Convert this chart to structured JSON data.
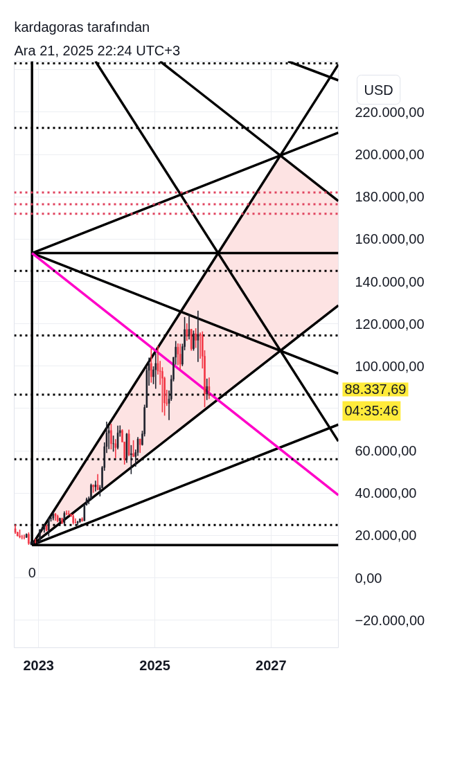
{
  "chart_data": {
    "type": "candlestick",
    "title": "kardagoras tarafından",
    "subtitle": "Ara 21, 2025 22:24 UTC+3",
    "x": [
      "2022-08-08",
      "2022-08-22",
      "2022-09-05",
      "2022-09-19",
      "2022-10-03",
      "2022-10-17",
      "2022-10-31",
      "2022-11-14",
      "2022-11-28",
      "2022-12-12",
      "2022-12-26",
      "2023-01-09",
      "2023-01-23",
      "2023-02-06",
      "2023-02-20",
      "2023-03-06",
      "2023-03-20",
      "2023-04-03",
      "2023-04-17",
      "2023-05-01",
      "2023-05-15",
      "2023-05-29",
      "2023-06-12",
      "2023-06-26",
      "2023-07-10",
      "2023-07-24",
      "2023-08-07",
      "2023-08-21",
      "2023-09-04",
      "2023-09-18",
      "2023-10-02",
      "2023-10-16",
      "2023-10-30",
      "2023-11-13",
      "2023-11-27",
      "2023-12-11",
      "2023-12-25",
      "2024-01-08",
      "2024-01-22",
      "2024-02-05",
      "2024-02-19",
      "2024-03-04",
      "2024-03-18",
      "2024-04-01",
      "2024-04-15",
      "2024-04-29",
      "2024-05-13",
      "2024-05-27",
      "2024-06-10",
      "2024-06-24",
      "2024-07-08",
      "2024-07-22",
      "2024-08-05",
      "2024-08-19",
      "2024-09-02",
      "2024-09-16",
      "2024-09-30",
      "2024-10-14",
      "2024-10-28",
      "2024-11-11",
      "2024-11-25",
      "2024-12-09",
      "2024-12-23",
      "2025-01-06",
      "2025-01-20",
      "2025-02-03",
      "2025-02-17",
      "2025-03-03",
      "2025-03-17",
      "2025-03-31",
      "2025-04-14",
      "2025-04-28",
      "2025-05-12",
      "2025-05-26",
      "2025-06-09",
      "2025-06-23",
      "2025-07-07",
      "2025-07-21",
      "2025-08-04",
      "2025-08-18",
      "2025-09-01",
      "2025-09-15",
      "2025-09-29",
      "2025-10-13",
      "2025-10-27",
      "2025-11-10",
      "2025-11-24",
      "2025-12-08"
    ],
    "ohlc": [
      [
        23200,
        25200,
        20800,
        21500
      ],
      [
        21500,
        21800,
        19600,
        19800
      ],
      [
        19800,
        22800,
        18700,
        19400
      ],
      [
        19400,
        20300,
        18200,
        19300
      ],
      [
        19300,
        20500,
        18200,
        19100
      ],
      [
        19100,
        21000,
        18900,
        20600
      ],
      [
        20600,
        21500,
        15600,
        16300
      ],
      [
        16300,
        17200,
        15500,
        16500
      ],
      [
        16500,
        17400,
        16000,
        17100
      ],
      [
        17100,
        18400,
        16300,
        16800
      ],
      [
        16800,
        17100,
        16300,
        17100
      ],
      [
        17100,
        23000,
        17100,
        22700
      ],
      [
        22700,
        24200,
        22300,
        23000
      ],
      [
        23000,
        25200,
        21400,
        24600
      ],
      [
        24600,
        25100,
        22000,
        22400
      ],
      [
        22400,
        28500,
        19600,
        28000
      ],
      [
        28000,
        29200,
        26600,
        28200
      ],
      [
        28200,
        31000,
        27200,
        30300
      ],
      [
        30300,
        30500,
        27000,
        29200
      ],
      [
        29200,
        29800,
        26300,
        26900
      ],
      [
        26900,
        28400,
        26100,
        28100
      ],
      [
        28100,
        28400,
        25400,
        25900
      ],
      [
        25900,
        31400,
        24800,
        30500
      ],
      [
        30500,
        31800,
        29600,
        30300
      ],
      [
        30300,
        31800,
        29500,
        30100
      ],
      [
        30100,
        30100,
        28800,
        29100
      ],
      [
        29100,
        30200,
        25200,
        26100
      ],
      [
        26100,
        28100,
        25800,
        25900
      ],
      [
        25900,
        26900,
        24900,
        26500
      ],
      [
        26500,
        28000,
        26000,
        27900
      ],
      [
        27900,
        28600,
        26500,
        26900
      ],
      [
        26900,
        35000,
        26900,
        34500
      ],
      [
        34500,
        37900,
        34100,
        37100
      ],
      [
        37100,
        38400,
        34800,
        37400
      ],
      [
        37400,
        44500,
        36700,
        43800
      ],
      [
        43800,
        44100,
        40200,
        43000
      ],
      [
        43000,
        45900,
        40800,
        43900
      ],
      [
        43900,
        49000,
        41500,
        41600
      ],
      [
        41600,
        43800,
        38500,
        42600
      ],
      [
        42600,
        52800,
        42300,
        52100
      ],
      [
        52100,
        64000,
        50600,
        62000
      ],
      [
        62000,
        73800,
        59000,
        68400
      ],
      [
        68400,
        71700,
        60800,
        69600
      ],
      [
        69600,
        72800,
        60700,
        63400
      ],
      [
        63400,
        67200,
        59600,
        63400
      ],
      [
        63400,
        65500,
        56500,
        61500
      ],
      [
        61500,
        71900,
        60700,
        68500
      ],
      [
        68500,
        72000,
        66700,
        69600
      ],
      [
        69600,
        70200,
        64100,
        64200
      ],
      [
        64200,
        64200,
        53500,
        55800
      ],
      [
        55800,
        68400,
        54300,
        68000
      ],
      [
        68000,
        70000,
        57500,
        58100
      ],
      [
        58100,
        62700,
        49000,
        58700
      ],
      [
        58700,
        65000,
        57200,
        57300
      ],
      [
        57300,
        60600,
        52500,
        59200
      ],
      [
        59200,
        66500,
        57600,
        65600
      ],
      [
        65600,
        65700,
        59000,
        62900
      ],
      [
        62900,
        69500,
        62500,
        68000
      ],
      [
        68000,
        81800,
        66800,
        80500
      ],
      [
        80500,
        99500,
        80300,
        98000
      ],
      [
        98000,
        104000,
        90800,
        101300
      ],
      [
        101300,
        108300,
        92200,
        95000
      ],
      [
        95000,
        99900,
        91500,
        98300
      ],
      [
        98300,
        106000,
        89300,
        101300
      ],
      [
        101300,
        109600,
        96000,
        97700
      ],
      [
        97700,
        102500,
        91200,
        97500
      ],
      [
        97500,
        99500,
        78200,
        94300
      ],
      [
        94300,
        95000,
        76600,
        82600
      ],
      [
        82600,
        88800,
        81200,
        82400
      ],
      [
        82400,
        88500,
        74500,
        84500
      ],
      [
        84500,
        95800,
        83600,
        93800
      ],
      [
        93800,
        104300,
        92800,
        104200
      ],
      [
        104200,
        111900,
        100700,
        109000
      ],
      [
        109000,
        110700,
        100400,
        105700
      ],
      [
        105700,
        110600,
        98200,
        100900
      ],
      [
        100900,
        110600,
        100000,
        109200
      ],
      [
        109200,
        123200,
        107500,
        117300
      ],
      [
        117300,
        120200,
        112000,
        114200
      ],
      [
        114200,
        124500,
        112600,
        117400
      ],
      [
        117400,
        117600,
        107300,
        108200
      ],
      [
        108200,
        116800,
        107300,
        115300
      ],
      [
        115300,
        117900,
        108600,
        112200
      ],
      [
        112200,
        126200,
        102000,
        115100
      ],
      [
        115100,
        115900,
        103500,
        114500
      ],
      [
        114500,
        116400,
        98900,
        104700
      ],
      [
        104700,
        107500,
        80600,
        86800
      ],
      [
        86800,
        94100,
        84000,
        90400
      ],
      [
        90400,
        94600,
        84500,
        88337.69
      ]
    ],
    "colors": [
      "#f23645",
      "#f23645",
      "#f23645",
      "#f23645",
      "#f23645",
      "#1e222d",
      "#f23645",
      "#1e222d",
      "#1e222d",
      "#f23645",
      "#1e222d",
      "#1e222d",
      "#1e222d",
      "#1e222d",
      "#f23645",
      "#1e222d",
      "#1e222d",
      "#1e222d",
      "#f23645",
      "#f23645",
      "#1e222d",
      "#f23645",
      "#1e222d",
      "#f23645",
      "#f23645",
      "#f23645",
      "#f23645",
      "#f23645",
      "#1e222d",
      "#1e222d",
      "#f23645",
      "#1e222d",
      "#1e222d",
      "#1e222d",
      "#1e222d",
      "#f23645",
      "#1e222d",
      "#f23645",
      "#1e222d",
      "#1e222d",
      "#1e222d",
      "#1e222d",
      "#1e222d",
      "#f23645",
      "#1e222d",
      "#f23645",
      "#1e222d",
      "#1e222d",
      "#f23645",
      "#f23645",
      "#1e222d",
      "#f23645",
      "#1e222d",
      "#f23645",
      "#1e222d",
      "#1e222d",
      "#f23645",
      "#1e222d",
      "#1e222d",
      "#1e222d",
      "#1e222d",
      "#f23645",
      "#1e222d",
      "#1e222d",
      "#f23645",
      "#f23645",
      "#f23645",
      "#f23645",
      "#f23645",
      "#1e222d",
      "#1e222d",
      "#1e222d",
      "#1e222d",
      "#f23645",
      "#f23645",
      "#1e222d",
      "#1e222d",
      "#f23645",
      "#1e222d",
      "#f23645",
      "#1e222d",
      "#f23645",
      "#1e222d",
      "#f23645",
      "#f23645",
      "#f23645",
      "#1e222d",
      "#f23645"
    ],
    "series": [
      {
        "type": "line",
        "color": "#000000",
        "x": [
          "2022-11-21",
          "2022-11-21"
        ],
        "values": [
          15500,
          244000
        ]
      },
      {
        "type": "line",
        "color": "#000000",
        "x": [
          "2022-11-21",
          "2028-02-28"
        ],
        "values": [
          15500,
          15500
        ]
      },
      {
        "type": "line",
        "color": "#000000",
        "x": [
          "2022-11-21",
          "2028-02-28"
        ],
        "values": [
          153400,
          153400
        ]
      },
      {
        "type": "line",
        "color": "#000000",
        "x": [
          "2022-11-21",
          "2028-02-28"
        ],
        "values": [
          153400,
          210300
        ]
      },
      {
        "type": "line",
        "color": "#000000",
        "x": [
          "2022-11-21",
          "2028-02-28"
        ],
        "values": [
          153400,
          96500
        ]
      },
      {
        "type": "line",
        "color": "#000000",
        "x": [
          "2022-11-21",
          "2028-02-28"
        ],
        "values": [
          15500,
          242500
        ]
      },
      {
        "type": "line",
        "color": "#000000",
        "x": [
          "2022-11-21",
          "2026-06-01",
          "2027-03-01",
          "2027-09-01",
          "2028-02-28"
        ],
        "values": [
          15500,
          91300,
          107300,
          118100,
          128700
        ],
        "lower": [
          15500,
          91300,
          107300,
          118100,
          128700
        ],
        "upper": [
          15500,
          167500,
          199500,
          188600,
          178000
        ]
      },
      {
        "type": "line",
        "color": "#000000",
        "x": [
          "2022-11-21",
          "2028-02-28"
        ],
        "values": [
          15500,
          72400
        ]
      },
      {
        "type": "line",
        "color": "#000000",
        "x": [
          "2023-12-25",
          "2028-02-28"
        ],
        "values": [
          244000,
          64500
        ]
      },
      {
        "type": "line",
        "color": "#000000",
        "x": [
          "2025-02-03",
          "2028-02-28"
        ],
        "values": [
          244000,
          178000
        ]
      },
      {
        "type": "line",
        "color": "#000000",
        "x": [
          "2027-04-18",
          "2028-02-28"
        ],
        "values": [
          244000,
          235000
        ]
      },
      {
        "type": "line",
        "color": "#ff00c8",
        "x": [
          "2022-11-21",
          "2028-02-28"
        ],
        "values": [
          153400,
          39100
        ]
      }
    ],
    "xlim": [
      "2022-08-01",
      "2028-02-28"
    ],
    "xticks": [
      "2023",
      "2025",
      "2027"
    ],
    "ylim": [
      -33000,
      244000
    ],
    "yticks": [
      {
        "value": -20000,
        "label": "−20.000,00"
      },
      {
        "value": 0,
        "label": "0,00"
      },
      {
        "value": 20000,
        "label": "20.000,00"
      },
      {
        "value": 40000,
        "label": "40.000,00"
      },
      {
        "value": 60000,
        "label": "60.000,00"
      },
      {
        "value": 80000,
        "label": null
      },
      {
        "value": 100000,
        "label": "100.000,00"
      },
      {
        "value": 120000,
        "label": "120.000,00"
      },
      {
        "value": 140000,
        "label": "140.000,00"
      },
      {
        "value": 160000,
        "label": "160.000,00"
      },
      {
        "value": 180000,
        "label": "180.000,00"
      },
      {
        "value": 200000,
        "label": "200.000,00"
      },
      {
        "value": 220000,
        "label": "220.000,00"
      },
      {
        "value": 240000,
        "label": null
      }
    ],
    "grid": true,
    "ref_lines": [
      {
        "axis": "y",
        "value": 243000,
        "color": "#000000",
        "line_style": "dotted"
      },
      {
        "axis": "y",
        "value": 212500,
        "color": "#000000",
        "line_style": "dotted"
      },
      {
        "axis": "y",
        "value": 182000,
        "color": "#e0435e",
        "line_style": "dotted"
      },
      {
        "axis": "y",
        "value": 176500,
        "color": "#e0435e",
        "line_style": "dotted"
      },
      {
        "axis": "y",
        "value": 172000,
        "color": "#e0435e",
        "line_style": "dotted"
      },
      {
        "axis": "y",
        "value": 145000,
        "color": "#000000",
        "line_style": "dotted"
      },
      {
        "axis": "y",
        "value": 114500,
        "color": "#000000",
        "line_style": "dotted"
      },
      {
        "axis": "y",
        "value": 86500,
        "color": "#000000",
        "line_style": "dotted"
      },
      {
        "axis": "y",
        "value": 56000,
        "color": "#000000",
        "line_style": "dotted"
      },
      {
        "axis": "y",
        "value": 25000,
        "color": "#000000",
        "line_style": "dotted"
      }
    ],
    "annotations": [
      "USD",
      {
        "text": "0",
        "x": "2022-11-21",
        "y": 15500
      },
      "88.337,69",
      "04:35:46"
    ]
  }
}
